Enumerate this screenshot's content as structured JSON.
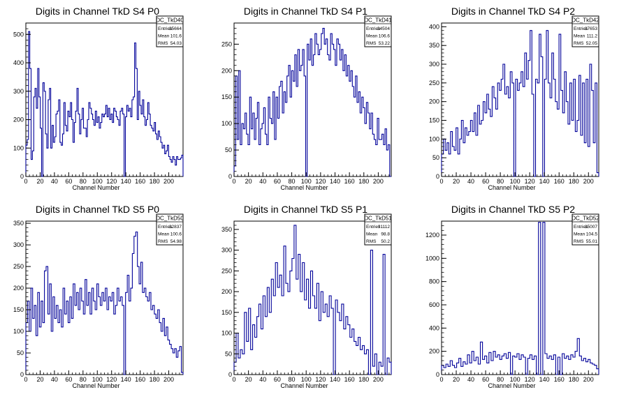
{
  "chart_data": [
    {
      "type": "histogram",
      "title": "Digits in Channel TkD S4 P0",
      "xlabel": "Channel Number",
      "xlim": [
        0,
        220
      ],
      "ylim": [
        0,
        540
      ],
      "xticks": [
        0,
        20,
        40,
        60,
        80,
        100,
        120,
        140,
        160,
        180,
        200
      ],
      "yticks": [
        0,
        100,
        200,
        300,
        400,
        500
      ],
      "stats": {
        "name": "DC_TkD40",
        "rows": [
          [
            "Entries",
            "35664"
          ],
          [
            "Mean",
            "101.6"
          ],
          [
            "RMS",
            "54.03"
          ]
        ]
      },
      "values": [
        110,
        130,
        510,
        380,
        60,
        90,
        280,
        310,
        240,
        380,
        280,
        170,
        0,
        330,
        300,
        150,
        100,
        270,
        310,
        100,
        180,
        120,
        140,
        220,
        230,
        270,
        120,
        110,
        150,
        260,
        180,
        160,
        230,
        210,
        260,
        200,
        120,
        190,
        230,
        310,
        220,
        150,
        200,
        240,
        170,
        170,
        140,
        200,
        260,
        240,
        220,
        200,
        180,
        230,
        190,
        210,
        170,
        190,
        220,
        210,
        220,
        250,
        210,
        240,
        200,
        220,
        190,
        240,
        230,
        210,
        200,
        180,
        230,
        240,
        220,
        0,
        210,
        250,
        230,
        240,
        210,
        270,
        280,
        470,
        380,
        200,
        300,
        250,
        220,
        270,
        210,
        180,
        200,
        260,
        220,
        180,
        170,
        160,
        190,
        150,
        130,
        160,
        140,
        120,
        100,
        110,
        80,
        90,
        110,
        70,
        60,
        50,
        70,
        60,
        40,
        70,
        60,
        60,
        65,
        75
      ]
    },
    {
      "type": "histogram",
      "title": "Digits in Channel TkD S4 P1",
      "xlabel": "Channel Number",
      "xlim": [
        0,
        218
      ],
      "ylim": [
        0,
        290
      ],
      "xticks": [
        0,
        20,
        40,
        60,
        80,
        100,
        120,
        140,
        160,
        180,
        200
      ],
      "yticks": [
        0,
        50,
        100,
        150,
        200,
        250
      ],
      "stats": {
        "name": "DC_TkD41",
        "rows": [
          [
            "Entries",
            "34504"
          ],
          [
            "Mean",
            "106.6"
          ],
          [
            "RMS",
            "53.22"
          ]
        ]
      },
      "values": [
        20,
        190,
        70,
        200,
        60,
        100,
        90,
        120,
        80,
        60,
        150,
        90,
        120,
        70,
        110,
        140,
        60,
        90,
        100,
        130,
        80,
        60,
        150,
        110,
        100,
        160,
        70,
        150,
        110,
        170,
        180,
        120,
        160,
        140,
        190,
        210,
        150,
        200,
        180,
        230,
        170,
        240,
        200,
        210,
        240,
        190,
        0,
        250,
        220,
        260,
        210,
        230,
        270,
        250,
        230,
        240,
        270,
        280,
        250,
        260,
        230,
        220,
        270,
        250,
        240,
        210,
        260,
        250,
        220,
        240,
        200,
        230,
        190,
        210,
        180,
        200,
        170,
        150,
        190,
        140,
        160,
        120,
        150,
        130,
        100,
        140,
        120,
        90,
        120,
        80,
        70,
        60,
        110,
        70,
        70,
        80,
        60,
        90,
        50,
        60,
        0
      ]
    },
    {
      "type": "histogram",
      "title": "Digits in Channel TkD S4 P2",
      "xlabel": "Channel Number",
      "xlim": [
        0,
        214
      ],
      "ylim": [
        0,
        410
      ],
      "xticks": [
        0,
        20,
        40,
        60,
        80,
        100,
        120,
        140,
        160,
        180,
        200
      ],
      "yticks": [
        0,
        50,
        100,
        150,
        200,
        250,
        300,
        350,
        400
      ],
      "stats": {
        "name": "DC_TkD42",
        "rows": [
          [
            "Entries",
            "37653"
          ],
          [
            "Mean",
            "111.2"
          ],
          [
            "RMS",
            "52.05"
          ]
        ]
      },
      "values": [
        60,
        100,
        70,
        90,
        60,
        120,
        80,
        70,
        130,
        60,
        100,
        150,
        90,
        130,
        110,
        120,
        150,
        120,
        170,
        110,
        190,
        140,
        150,
        200,
        170,
        220,
        180,
        160,
        240,
        210,
        180,
        250,
        230,
        260,
        300,
        220,
        240,
        210,
        280,
        250,
        0,
        260,
        230,
        250,
        280,
        240,
        330,
        260,
        310,
        390,
        220,
        0,
        260,
        250,
        380,
        320,
        0,
        260,
        390,
        250,
        210,
        330,
        260,
        200,
        180,
        380,
        230,
        170,
        280,
        200,
        140,
        250,
        150,
        260,
        120,
        150,
        270,
        110,
        250,
        90,
        260,
        80,
        300,
        230,
        90,
        250,
        10
      ]
    },
    {
      "type": "histogram",
      "title": "Digits in Channel TkD S5 P0",
      "xlabel": "Channel Number",
      "xlim": [
        0,
        220
      ],
      "ylim": [
        0,
        355
      ],
      "xticks": [
        0,
        20,
        40,
        60,
        80,
        100,
        120,
        140,
        160,
        180,
        200
      ],
      "yticks": [
        0,
        50,
        100,
        150,
        200,
        250,
        300,
        350
      ],
      "stats": {
        "name": "DC_TkD50",
        "rows": [
          [
            "Entries",
            "32837"
          ],
          [
            "Mean",
            "100.6"
          ],
          [
            "RMS",
            "54.98"
          ]
        ]
      },
      "values": [
        120,
        170,
        100,
        200,
        130,
        160,
        90,
        190,
        110,
        170,
        120,
        240,
        250,
        140,
        210,
        100,
        180,
        130,
        160,
        120,
        150,
        110,
        200,
        140,
        170,
        120,
        180,
        130,
        210,
        160,
        190,
        150,
        200,
        170,
        140,
        220,
        160,
        190,
        140,
        200,
        170,
        150,
        210,
        180,
        160,
        190,
        170,
        200,
        150,
        180,
        170,
        190,
        140,
        160,
        200,
        170,
        180,
        160,
        0,
        190,
        230,
        170,
        200,
        280,
        320,
        330,
        250,
        210,
        260,
        190,
        200,
        180,
        170,
        190,
        150,
        160,
        140,
        130,
        150,
        120,
        100,
        130,
        90,
        110,
        80,
        70,
        60,
        50,
        60,
        40,
        55,
        65,
        5
      ]
    },
    {
      "type": "histogram",
      "title": "Digits in Channel TkD S5 P1",
      "xlabel": "Channel Number",
      "xlim": [
        0,
        218
      ],
      "ylim": [
        0,
        370
      ],
      "xticks": [
        0,
        20,
        40,
        60,
        80,
        100,
        120,
        140,
        160,
        180,
        200
      ],
      "yticks": [
        0,
        50,
        100,
        150,
        200,
        250,
        300,
        350
      ],
      "stats": {
        "name": "DC_TkD51",
        "rows": [
          [
            "Entries",
            "31112"
          ],
          [
            "Mean",
            "98.8"
          ],
          [
            "RMS",
            "50.2"
          ]
        ]
      },
      "values": [
        30,
        100,
        40,
        60,
        50,
        150,
        80,
        160,
        60,
        120,
        90,
        140,
        170,
        110,
        190,
        140,
        210,
        150,
        230,
        190,
        270,
        210,
        240,
        190,
        310,
        220,
        200,
        250,
        280,
        360,
        230,
        290,
        200,
        270,
        180,
        230,
        160,
        250,
        190,
        160,
        220,
        130,
        200,
        150,
        170,
        140,
        190,
        160,
        0,
        180,
        150,
        130,
        170,
        110,
        140,
        120,
        90,
        110,
        80,
        70,
        90,
        60,
        70,
        50,
        60,
        0,
        300,
        20,
        50,
        0,
        30,
        20,
        290,
        0,
        40,
        30
      ]
    },
    {
      "type": "histogram",
      "title": "Digits in Channel TkD S5 P2",
      "xlabel": "Channel Number",
      "xlim": [
        0,
        214
      ],
      "ylim": [
        0,
        1320
      ],
      "xticks": [
        0,
        20,
        40,
        60,
        80,
        100,
        120,
        140,
        160,
        180,
        200
      ],
      "yticks": [
        0,
        200,
        400,
        600,
        800,
        1000,
        1200
      ],
      "stats": {
        "name": "DC_TkD52",
        "rows": [
          [
            "Entries",
            "35007"
          ],
          [
            "Mean",
            "104.5"
          ],
          [
            "RMS",
            "55.01"
          ]
        ]
      },
      "values": [
        80,
        60,
        90,
        70,
        120,
        80,
        60,
        100,
        140,
        70,
        110,
        90,
        170,
        100,
        200,
        120,
        150,
        90,
        280,
        130,
        160,
        100,
        190,
        120,
        200,
        150,
        170,
        130,
        160,
        180,
        140,
        190,
        0,
        160,
        150,
        180,
        130,
        170,
        150,
        0,
        140,
        170,
        130,
        160,
        0,
        1310,
        0,
        1310,
        180,
        140,
        160,
        130,
        170,
        0,
        150,
        0,
        180,
        140,
        160,
        130,
        170,
        150,
        200,
        310,
        160,
        120,
        140,
        110,
        130,
        100,
        90,
        80,
        50
      ]
    }
  ]
}
